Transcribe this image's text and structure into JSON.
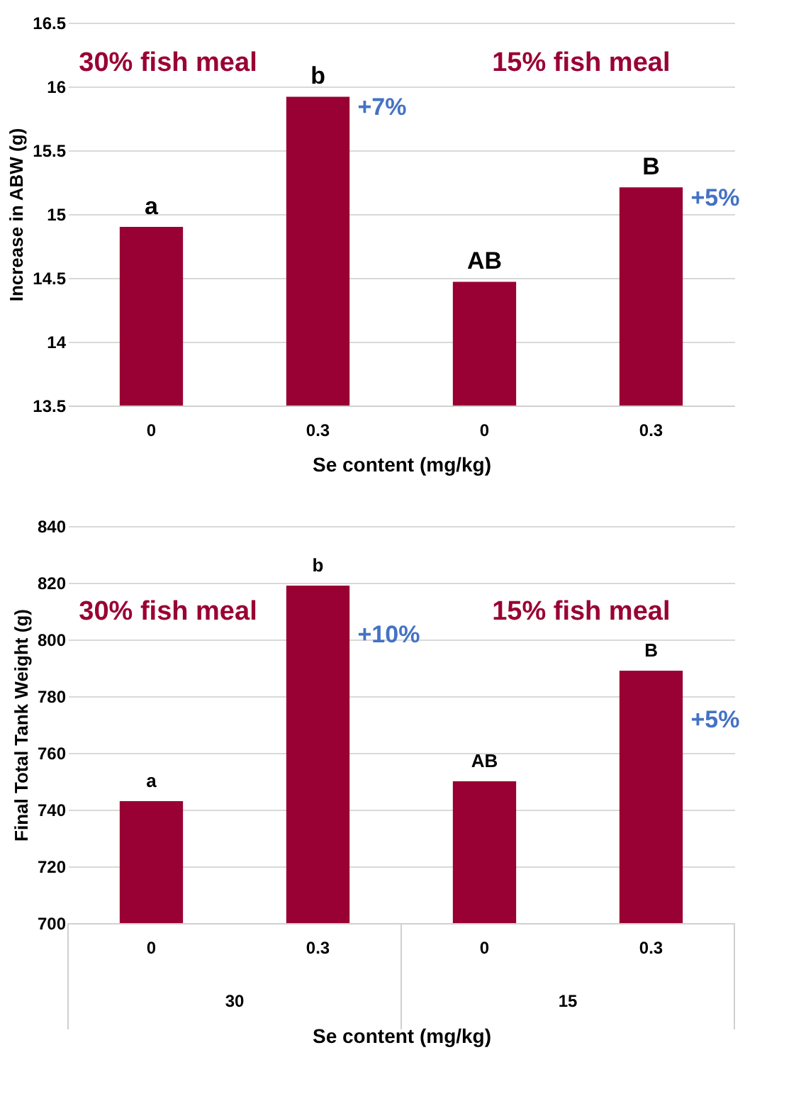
{
  "chart_data": [
    {
      "type": "bar",
      "ylabel": "Increase in ABW (g)",
      "xlabel": "Se content (mg/kg)",
      "categories": [
        "0",
        "0.3",
        "0",
        "0.3"
      ],
      "values": [
        14.9,
        15.92,
        14.47,
        15.21
      ],
      "color": "#990033",
      "value_labels": [
        "a",
        "b",
        "AB",
        "B"
      ],
      "ylim": [
        13.5,
        16.5
      ],
      "yticks": [
        13.5,
        {
          "value": 14,
          "label": "14"
        },
        14.5,
        {
          "value": 15,
          "label": "15"
        },
        15.5,
        {
          "value": 16,
          "label": "16"
        },
        16.5
      ],
      "grid": "y",
      "annotations": [
        "30% fish meal",
        "15% fish meal",
        "+7%",
        "+5%"
      ]
    },
    {
      "type": "bar",
      "ylabel": "Final Total Tank Weight (g)",
      "xlabel": "Se content (mg/kg)",
      "categories": [
        "0",
        "0.3",
        "0",
        "0.3"
      ],
      "values": [
        743,
        819,
        750,
        789
      ],
      "color": "#990033",
      "value_labels": [
        "a",
        "b",
        "AB",
        "B"
      ],
      "ylim": [
        700,
        840
      ],
      "yticks": [
        700,
        720,
        740,
        760,
        780,
        800,
        820,
        840
      ],
      "grid": "y",
      "annotations": [
        "30% fish meal",
        "15% fish meal",
        "30",
        "15",
        "+10%",
        "+5%"
      ]
    }
  ]
}
